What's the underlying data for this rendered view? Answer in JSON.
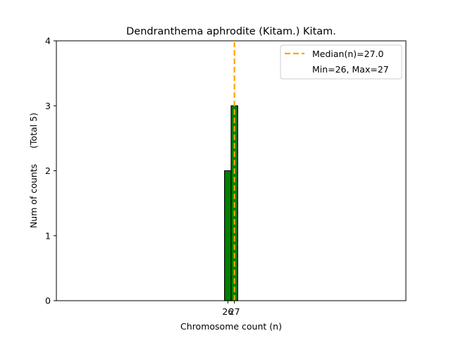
{
  "chart_data": {
    "type": "bar",
    "title": "Dendranthema aphrodite (Kitam.) Kitam.",
    "xlabel": "Chromosome count (n)",
    "ylabel": "Num of counts",
    "ylabel_note": "(Total 5)",
    "categories": [
      26,
      27
    ],
    "values": [
      2,
      3
    ],
    "bar_color": "#008000",
    "x_ticks": [
      26,
      27
    ],
    "y_ticks": [
      0,
      1,
      2,
      3,
      4
    ],
    "ylim": [
      0,
      4
    ],
    "xlim": [
      0,
      53
    ],
    "median": 27.0,
    "median_color": "#FFA500",
    "legend": {
      "placement": "top-right",
      "median_label": "Median(n)=27.0",
      "range_label": "Min=26, Max=27"
    },
    "grid": false
  }
}
